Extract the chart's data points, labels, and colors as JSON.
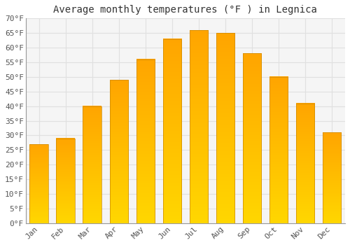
{
  "title": "Average monthly temperatures (°F ) in Legnica",
  "months": [
    "Jan",
    "Feb",
    "Mar",
    "Apr",
    "May",
    "Jun",
    "Jul",
    "Aug",
    "Sep",
    "Oct",
    "Nov",
    "Dec"
  ],
  "values": [
    27,
    29,
    40,
    49,
    56,
    63,
    66,
    65,
    58,
    50,
    41,
    31
  ],
  "ylim": [
    0,
    70
  ],
  "yticks": [
    0,
    5,
    10,
    15,
    20,
    25,
    30,
    35,
    40,
    45,
    50,
    55,
    60,
    65,
    70
  ],
  "ytick_labels": [
    "0°F",
    "5°F",
    "10°F",
    "15°F",
    "20°F",
    "25°F",
    "30°F",
    "35°F",
    "40°F",
    "45°F",
    "50°F",
    "55°F",
    "60°F",
    "65°F",
    "70°F"
  ],
  "bar_color": "#FFA500",
  "bar_top_color": "#FFD700",
  "background_color": "#ffffff",
  "plot_bg_color": "#f5f5f5",
  "grid_color": "#e0e0e0",
  "title_fontsize": 10,
  "tick_fontsize": 8,
  "title_color": "#333333",
  "tick_color": "#555555",
  "spine_color": "#999999"
}
